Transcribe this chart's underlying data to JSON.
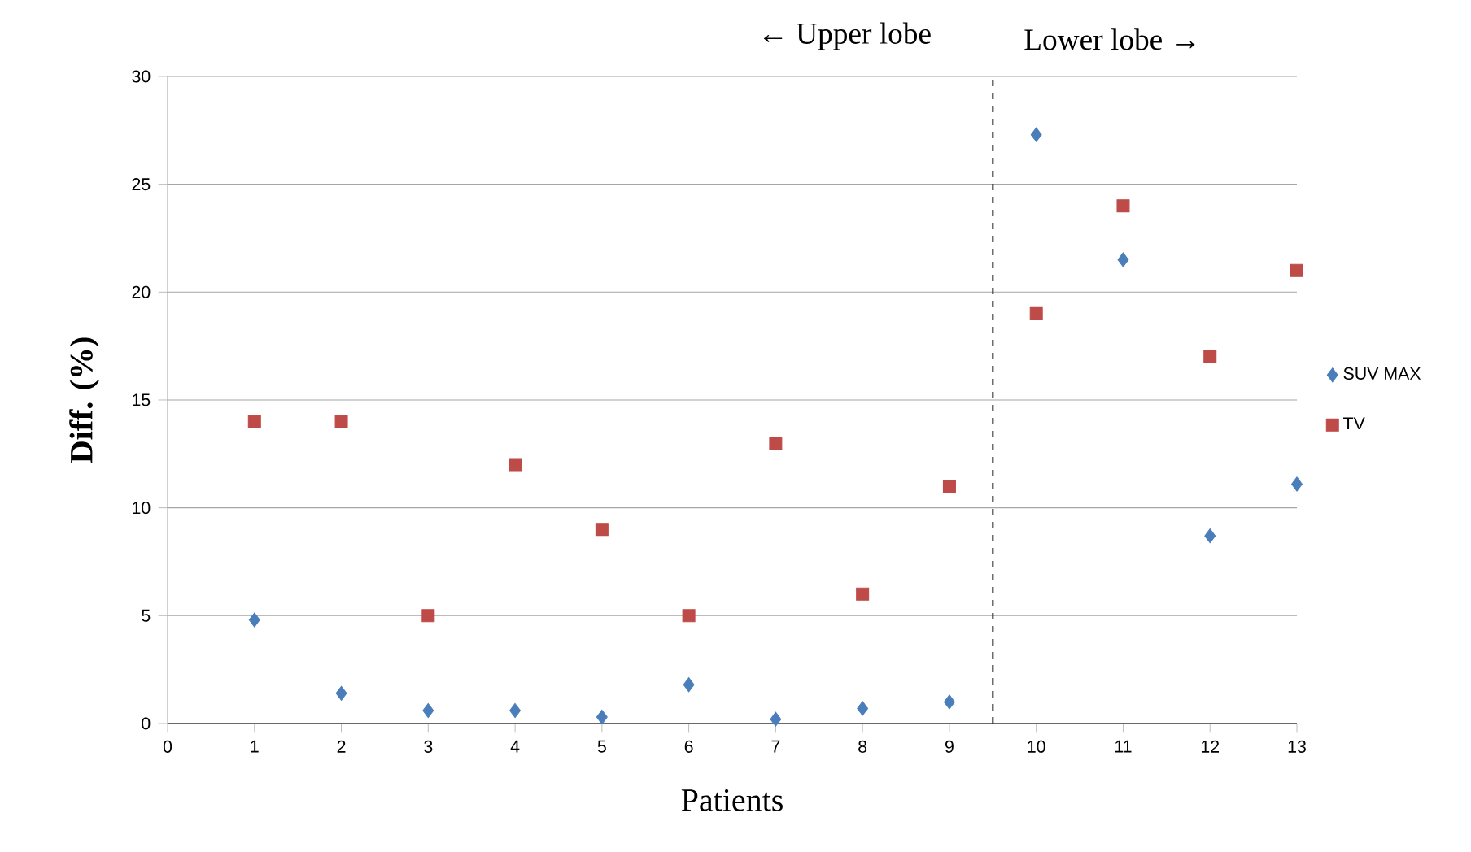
{
  "chart_data": {
    "type": "scatter",
    "xlabel": "Patients",
    "ylabel": "Diff. (%)",
    "x": [
      1,
      2,
      3,
      4,
      5,
      6,
      7,
      8,
      9,
      10,
      11,
      12,
      13
    ],
    "series": [
      {
        "name": "SUV MAX",
        "color": "#4a7ebb",
        "marker": "diamond",
        "values": [
          4.8,
          1.4,
          0.6,
          0.6,
          0.3,
          1.8,
          0.2,
          0.7,
          1.0,
          27.3,
          21.5,
          8.7,
          11.1
        ]
      },
      {
        "name": "TV",
        "color": "#be4b48",
        "marker": "square",
        "values": [
          14,
          14,
          5,
          12,
          9,
          5,
          13,
          6,
          11,
          19,
          24,
          17,
          21
        ]
      }
    ],
    "xlim": [
      0,
      13
    ],
    "xticks": [
      0,
      1,
      2,
      3,
      4,
      5,
      6,
      7,
      8,
      9,
      10,
      11,
      12,
      13
    ],
    "ylim": [
      0,
      30
    ],
    "yticks": [
      0,
      5,
      10,
      15,
      20,
      25,
      30
    ],
    "grid": "y",
    "legend": "right",
    "ref_lines": [
      {
        "axis": "x",
        "value": 9.5,
        "color": "#404040",
        "line_style": "dashed"
      }
    ],
    "annotations": [
      "← Upper lobe",
      "Lower lobe →"
    ]
  }
}
